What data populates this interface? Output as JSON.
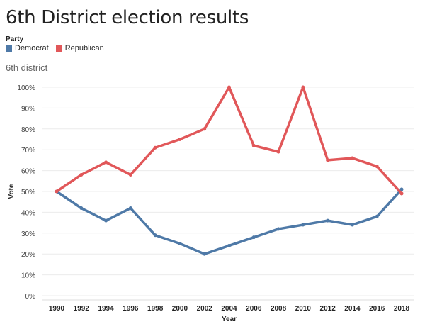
{
  "header": {
    "title": "6th District election results"
  },
  "legend": {
    "title": "Party",
    "items": [
      {
        "label": "Democrat",
        "color": "#4e79a7"
      },
      {
        "label": "Republican",
        "color": "#e15759"
      }
    ]
  },
  "panel": {
    "subtitle": "6th district"
  },
  "chart_data": {
    "type": "line",
    "title": "6th District election results",
    "xlabel": "Year",
    "ylabel": "Vote",
    "x": [
      "1990",
      "1992",
      "1994",
      "1996",
      "1998",
      "2000",
      "2002",
      "2004",
      "2006",
      "2008",
      "2010",
      "2012",
      "2014",
      "2016",
      "2018"
    ],
    "series": [
      {
        "name": "Democrat",
        "color": "#4e79a7",
        "values": [
          50,
          42,
          36,
          42,
          29,
          25,
          20,
          24,
          28,
          32,
          34,
          36,
          34,
          38,
          51
        ]
      },
      {
        "name": "Republican",
        "color": "#e15759",
        "values": [
          50,
          58,
          64,
          58,
          71,
          75,
          80,
          100,
          72,
          69,
          100,
          65,
          66,
          62,
          49
        ]
      }
    ],
    "ylim": [
      0,
      100
    ],
    "yticks": [
      "0%",
      "10%",
      "20%",
      "30%",
      "40%",
      "50%",
      "60%",
      "70%",
      "80%",
      "90%",
      "100%"
    ],
    "grid": true,
    "legend": "top-left"
  }
}
